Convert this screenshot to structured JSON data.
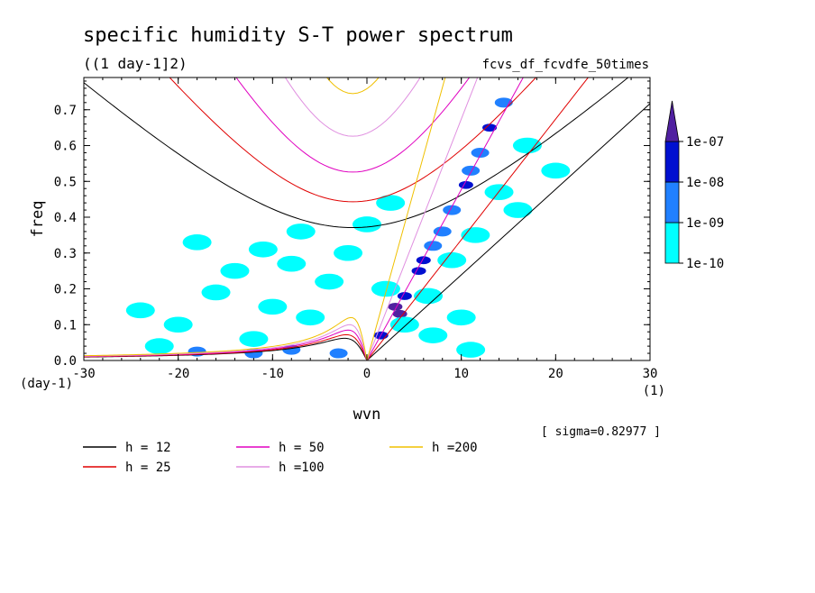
{
  "chart_data": {
    "type": "line",
    "title": "specific humidity S-T power spectrum",
    "subtitle": "((1 day-1]2)",
    "run_label": "fcvs_df_fcvdfe_50times",
    "xlabel": "wvn",
    "ylabel": "freq",
    "x_unit": "(1)",
    "y_unit": "(day-1)",
    "xlim": [
      -30,
      30
    ],
    "ylim": [
      0,
      0.79
    ],
    "x_ticks": [
      "-30",
      "-20",
      "-10",
      "0",
      "10",
      "20",
      "30"
    ],
    "y_ticks": [
      "0.0",
      "0.1",
      "0.2",
      "0.3",
      "0.4",
      "0.5",
      "0.6",
      "0.7"
    ],
    "sigma_note": "[ sigma=0.82977 ]",
    "colorbar": {
      "labels": [
        "1e-10",
        "1e-09",
        "1e-08",
        "1e-07"
      ],
      "colors": [
        "#00ffff",
        "#2080ff",
        "#0010d0",
        "#5020a0"
      ]
    },
    "series": [
      {
        "name": "h = 12",
        "color": "#000000"
      },
      {
        "name": "h = 25",
        "color": "#e00000"
      },
      {
        "name": "h = 50",
        "color": "#e000c0"
      },
      {
        "name": "h =100",
        "color": "#e090e0"
      },
      {
        "name": "h =200",
        "color": "#f0c000"
      }
    ],
    "curves": {
      "kelvin_slope": [
        0.0239,
        0.0337,
        0.0477,
        0.0674,
        0.0953
      ],
      "inertia_gravity_min": [
        0.371,
        0.443,
        0.526,
        0.626,
        0.745
      ],
      "rossby_peak": [
        0.062,
        0.072,
        0.085,
        0.1,
        0.12
      ],
      "x_shift": -1.5
    },
    "spectrum_blobs": [
      {
        "x": 3.0,
        "y": 0.15,
        "level": 3
      },
      {
        "x": 3.5,
        "y": 0.13,
        "level": 3
      },
      {
        "x": 5.5,
        "y": 0.25,
        "level": 2
      },
      {
        "x": 6.0,
        "y": 0.28,
        "level": 2
      },
      {
        "x": 10.5,
        "y": 0.49,
        "level": 2
      },
      {
        "x": 13.0,
        "y": 0.65,
        "level": 2
      },
      {
        "x": 4.0,
        "y": 0.18,
        "level": 2
      },
      {
        "x": 1.5,
        "y": 0.07,
        "level": 2
      },
      {
        "x": 8.0,
        "y": 0.36,
        "level": 1
      },
      {
        "x": 9.0,
        "y": 0.42,
        "level": 1
      },
      {
        "x": 11.0,
        "y": 0.53,
        "level": 1
      },
      {
        "x": 12.0,
        "y": 0.58,
        "level": 1
      },
      {
        "x": 14.5,
        "y": 0.72,
        "level": 1
      },
      {
        "x": 7.0,
        "y": 0.32,
        "level": 1
      },
      {
        "x": -12.0,
        "y": 0.02,
        "level": 1
      },
      {
        "x": -8.0,
        "y": 0.03,
        "level": 1
      },
      {
        "x": -3.0,
        "y": 0.02,
        "level": 1
      },
      {
        "x": -18.0,
        "y": 0.025,
        "level": 1
      },
      {
        "x": -14.0,
        "y": 0.25,
        "level": 0
      },
      {
        "x": -8.0,
        "y": 0.27,
        "level": 0
      },
      {
        "x": -4.0,
        "y": 0.22,
        "level": 0
      },
      {
        "x": -16.0,
        "y": 0.19,
        "level": 0
      },
      {
        "x": -10.0,
        "y": 0.15,
        "level": 0
      },
      {
        "x": -6.0,
        "y": 0.12,
        "level": 0
      },
      {
        "x": -20.0,
        "y": 0.1,
        "level": 0
      },
      {
        "x": -24.0,
        "y": 0.14,
        "level": 0
      },
      {
        "x": -2.0,
        "y": 0.3,
        "level": 0
      },
      {
        "x": 2.0,
        "y": 0.2,
        "level": 0
      },
      {
        "x": 4.0,
        "y": 0.1,
        "level": 0
      },
      {
        "x": 7.0,
        "y": 0.07,
        "level": 0
      },
      {
        "x": 10.0,
        "y": 0.12,
        "level": 0
      },
      {
        "x": 11.0,
        "y": 0.03,
        "level": 0
      },
      {
        "x": -12.0,
        "y": 0.06,
        "level": 0
      },
      {
        "x": -22.0,
        "y": 0.04,
        "level": 0
      },
      {
        "x": 20.0,
        "y": 0.53,
        "level": 0
      },
      {
        "x": 17.0,
        "y": 0.6,
        "level": 0
      },
      {
        "x": 14.0,
        "y": 0.47,
        "level": 0
      },
      {
        "x": 11.5,
        "y": 0.35,
        "level": 0
      },
      {
        "x": 9.0,
        "y": 0.28,
        "level": 0
      },
      {
        "x": -18.0,
        "y": 0.33,
        "level": 0
      },
      {
        "x": -7.0,
        "y": 0.36,
        "level": 0
      },
      {
        "x": -11.0,
        "y": 0.31,
        "level": 0
      },
      {
        "x": 0.0,
        "y": 0.38,
        "level": 0
      },
      {
        "x": 2.5,
        "y": 0.44,
        "level": 0
      },
      {
        "x": 16.0,
        "y": 0.42,
        "level": 0
      },
      {
        "x": 6.5,
        "y": 0.18,
        "level": 0
      }
    ]
  },
  "legend": {
    "items": [
      {
        "label": "h = 12",
        "color": "#000000"
      },
      {
        "label": "h = 25",
        "color": "#e00000"
      },
      {
        "label": "h = 50",
        "color": "#e000c0"
      },
      {
        "label": "h =100",
        "color": "#e090e0"
      },
      {
        "label": "h =200",
        "color": "#f0c000"
      }
    ]
  }
}
